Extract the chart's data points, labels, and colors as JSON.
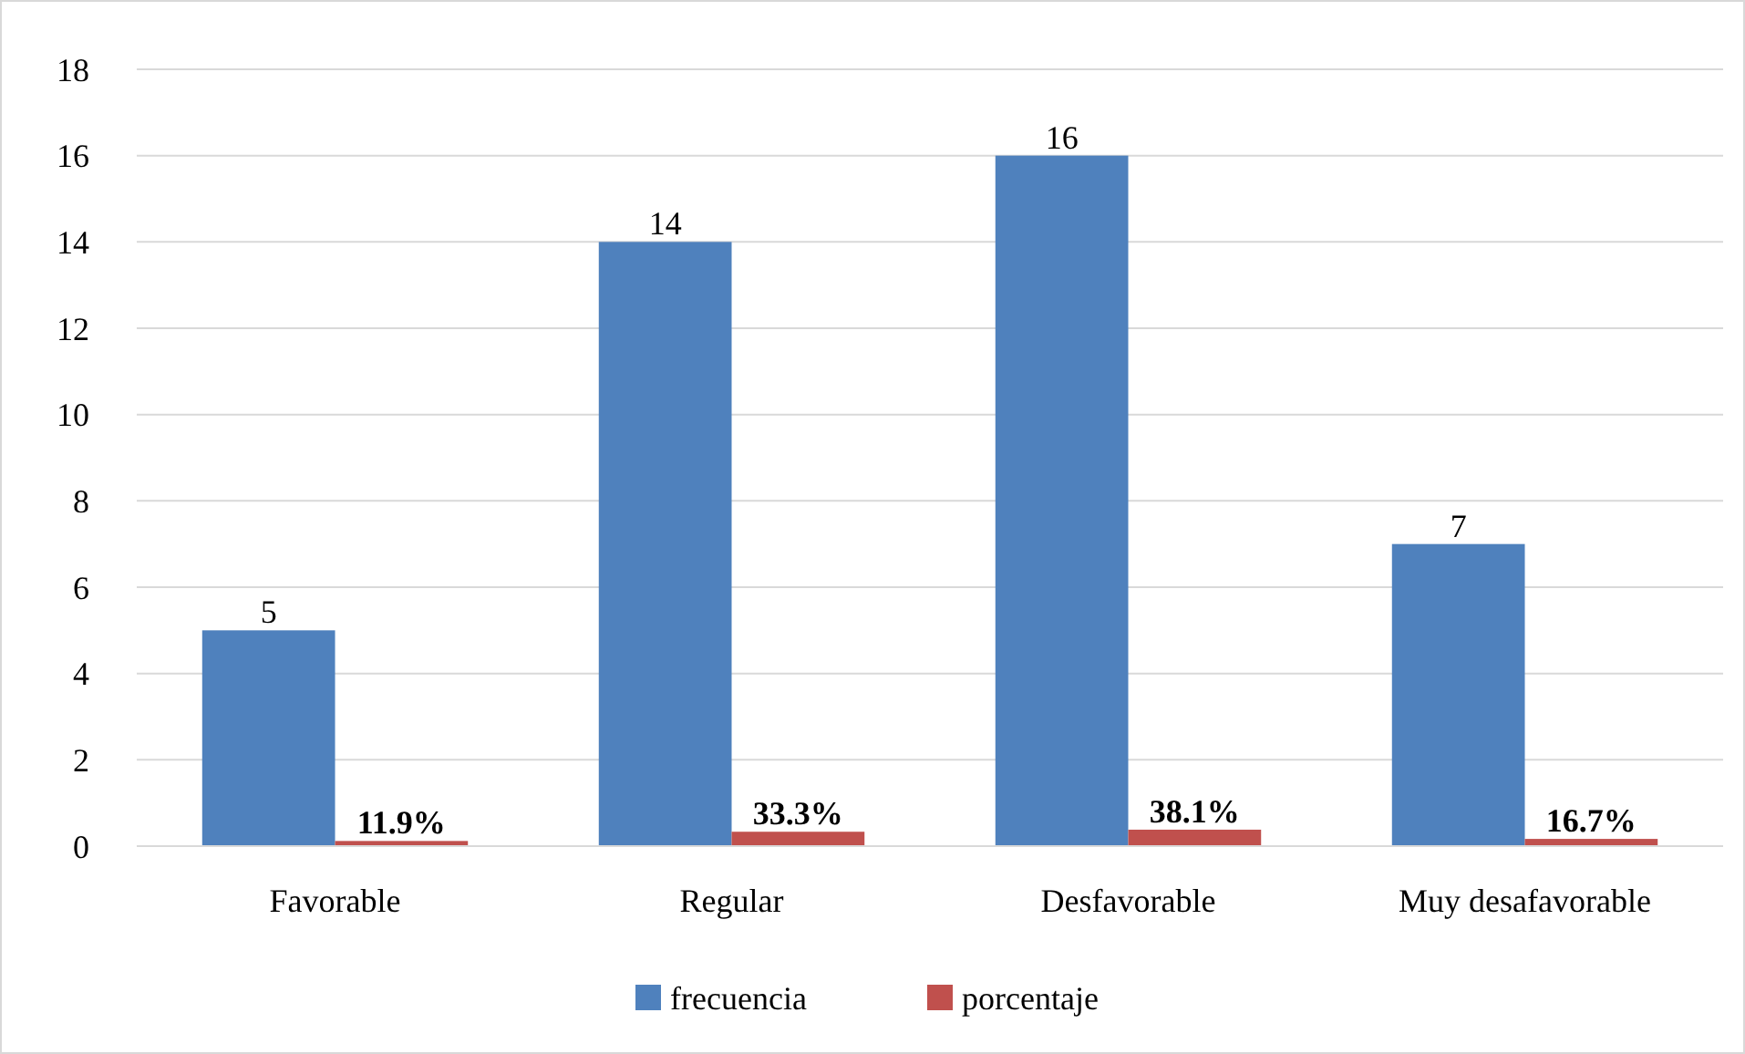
{
  "chart_data": {
    "type": "bar",
    "categories": [
      "Favorable",
      "Regular",
      "Desfavorable",
      "Muy desafavorable"
    ],
    "series": [
      {
        "name": "frecuencia",
        "color": "#4f81bd",
        "values": [
          5,
          14,
          16,
          7
        ],
        "value_labels": [
          "5",
          "14",
          "16",
          "7"
        ]
      },
      {
        "name": "porcentaje",
        "color": "#c0504d",
        "values": [
          0.119,
          0.333,
          0.381,
          0.167
        ],
        "value_labels": [
          "11.9%",
          "33.3%",
          "38.1%",
          "16.7%"
        ]
      }
    ],
    "ylim": [
      0,
      18
    ],
    "yticks": [
      0,
      2,
      4,
      6,
      8,
      10,
      12,
      14,
      16,
      18
    ],
    "grid": "y",
    "legend": "bottom"
  }
}
